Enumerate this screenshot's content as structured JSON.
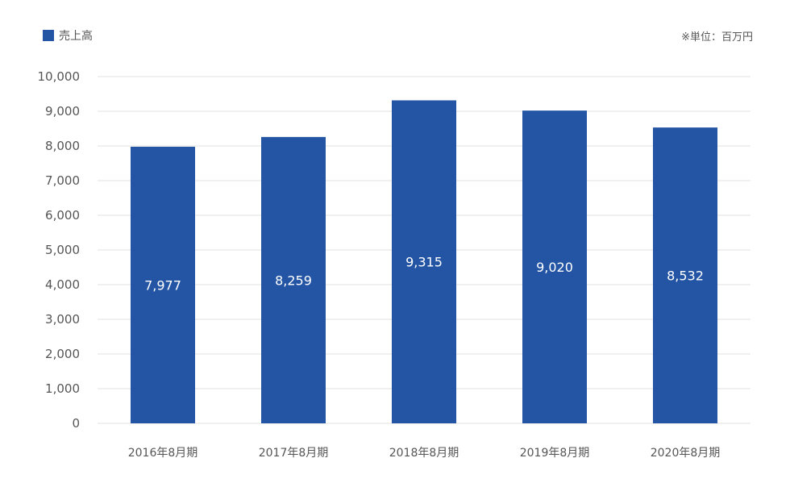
{
  "legend": {
    "label": "売上高",
    "color": "#2355a4"
  },
  "unit_note": "※単位：百万円",
  "chart_data": {
    "type": "bar",
    "categories": [
      "2016年8月期",
      "2017年8月期",
      "2018年8月期",
      "2019年8月期",
      "2020年8月期"
    ],
    "series": [
      {
        "name": "売上高",
        "values": [
          7977,
          8259,
          9315,
          9020,
          8532
        ],
        "color": "#2355a4"
      }
    ],
    "data_labels": [
      "7,977",
      "8,259",
      "9,315",
      "9,020",
      "8,532"
    ],
    "ylim": [
      0,
      10000
    ],
    "yticks": [
      0,
      1000,
      2000,
      3000,
      4000,
      5000,
      6000,
      7000,
      8000,
      9000,
      10000
    ],
    "ytick_labels": [
      "0",
      "1,000",
      "2,000",
      "3,000",
      "4,000",
      "5,000",
      "6,000",
      "7,000",
      "8,000",
      "9,000",
      "10,000"
    ],
    "grid": true,
    "legend_position": "top-left",
    "gridline_color": "#e0e0e0"
  }
}
